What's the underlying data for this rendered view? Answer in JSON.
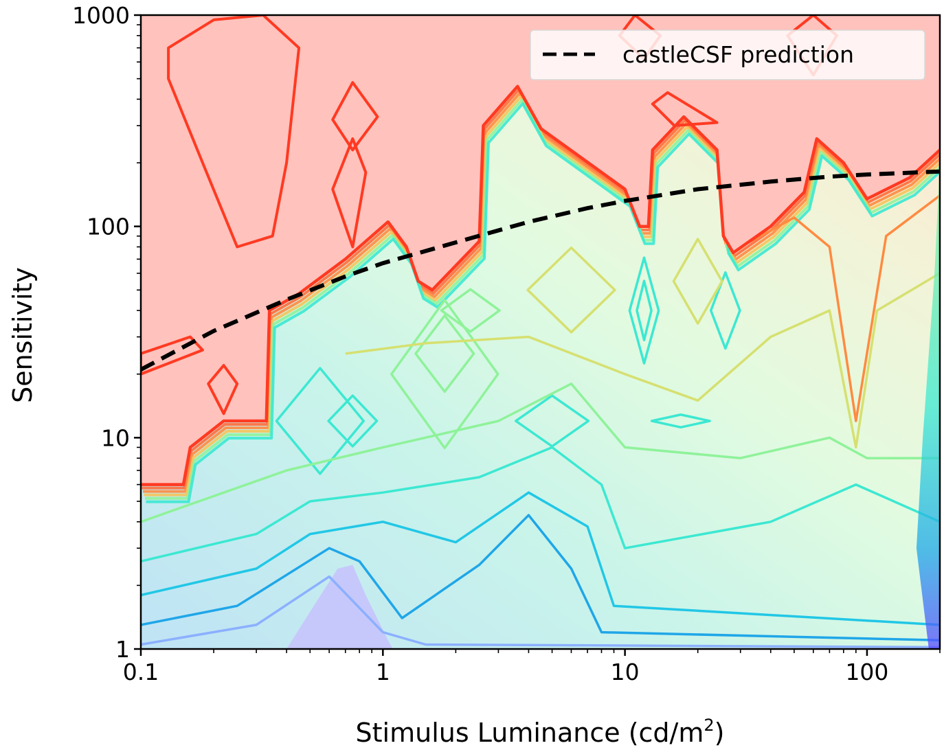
{
  "chart_data": {
    "type": "contour",
    "xlabel": {
      "prefix": "Stimulus Luminance (cd/m",
      "sup": "2",
      "suffix": ")"
    },
    "ylabel": "Sensitivity",
    "x_scale": "log",
    "y_scale": "log",
    "xlim": [
      0.1,
      200
    ],
    "ylim": [
      1,
      1000
    ],
    "x_ticks": [
      {
        "value": 0.1,
        "label": "0.1"
      },
      {
        "value": 1,
        "label": "1"
      },
      {
        "value": 10,
        "label": "10"
      },
      {
        "value": 100,
        "label": "100"
      }
    ],
    "y_ticks": [
      {
        "value": 1,
        "label": "1"
      },
      {
        "value": 10,
        "label": "10"
      },
      {
        "value": 100,
        "label": "100"
      },
      {
        "value": 1000,
        "label": "1000"
      }
    ],
    "legend": {
      "placement": "top-right",
      "entries": [
        {
          "label": "castleCSF prediction",
          "style": "dashed",
          "color": "#000000"
        }
      ]
    },
    "series": [
      {
        "name": "castleCSF prediction",
        "style": "dashed",
        "color": "#000000",
        "points": [
          [
            0.1,
            21
          ],
          [
            0.2,
            32
          ],
          [
            0.4,
            45
          ],
          [
            0.7,
            58
          ],
          [
            1,
            67
          ],
          [
            2,
            84
          ],
          [
            4,
            105
          ],
          [
            7,
            122
          ],
          [
            10,
            132
          ],
          [
            20,
            150
          ],
          [
            40,
            163
          ],
          [
            70,
            172
          ],
          [
            100,
            176
          ],
          [
            200,
            182
          ]
        ]
      }
    ],
    "contour_boundary": {
      "description": "upper edge of the non-red contour region",
      "points": [
        [
          0.1,
          6
        ],
        [
          0.15,
          6
        ],
        [
          0.16,
          9
        ],
        [
          0.22,
          12
        ],
        [
          0.33,
          12
        ],
        [
          0.34,
          40
        ],
        [
          0.45,
          48
        ],
        [
          0.7,
          70
        ],
        [
          1.05,
          105
        ],
        [
          1.25,
          80
        ],
        [
          1.4,
          55
        ],
        [
          1.6,
          50
        ],
        [
          2.5,
          85
        ],
        [
          2.6,
          300
        ],
        [
          3.6,
          460
        ],
        [
          4.5,
          290
        ],
        [
          10,
          150
        ],
        [
          11.5,
          100
        ],
        [
          12.5,
          100
        ],
        [
          13,
          230
        ],
        [
          17.5,
          330
        ],
        [
          24,
          230
        ],
        [
          25.5,
          90
        ],
        [
          28,
          75
        ],
        [
          40,
          100
        ],
        [
          55,
          145
        ],
        [
          62,
          260
        ],
        [
          80,
          200
        ],
        [
          100,
          135
        ],
        [
          150,
          170
        ],
        [
          200,
          230
        ]
      ]
    },
    "colormap": {
      "red": "#ff3a22",
      "orange": "#ff8a40",
      "yellow": "#d6e070",
      "green": "#8ff29a",
      "cyan": "#3ce8d2",
      "blue": "#1fa6e8",
      "violet": "#5a4bff",
      "red_fill": "#ffc2bd"
    }
  }
}
